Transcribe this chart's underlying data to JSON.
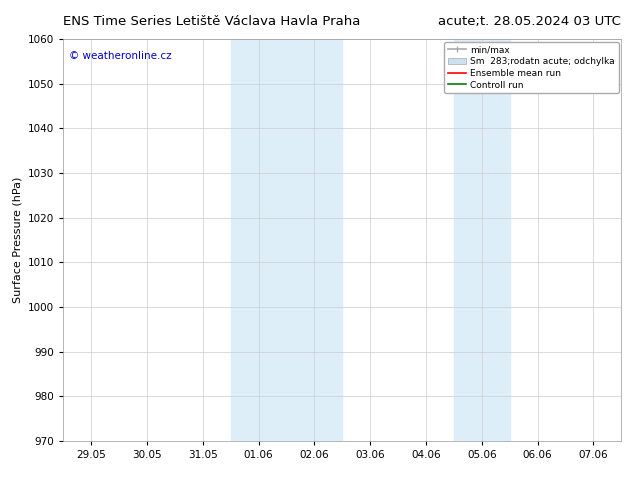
{
  "title_left": "ENS Time Series Letiště Václava Havla Praha",
  "title_right": "acute;t. 28.05.2024 03 UTC",
  "ylabel": "Surface Pressure (hPa)",
  "ylim": [
    970,
    1060
  ],
  "yticks": [
    970,
    980,
    990,
    1000,
    1010,
    1020,
    1030,
    1040,
    1050,
    1060
  ],
  "x_tick_labels": [
    "29.05",
    "30.05",
    "31.05",
    "01.06",
    "02.06",
    "03.06",
    "04.06",
    "05.06",
    "06.06",
    "07.06"
  ],
  "shaded_regions": [
    {
      "xmin": 3,
      "xmax": 5
    },
    {
      "xmin": 7,
      "xmax": 8
    }
  ],
  "shaded_color": "#ddeef8",
  "watermark_text": "© weatheronline.cz",
  "watermark_color": "#0000cc",
  "legend_entries": [
    {
      "label": "min/max",
      "color": "#aaaaaa",
      "lw": 1.2,
      "type": "line_with_cap"
    },
    {
      "label": "Sm  283;rodatn acute; odchylka",
      "color": "#cce0f0",
      "type": "rect"
    },
    {
      "label": "Ensemble mean run",
      "color": "red",
      "lw": 1.2,
      "type": "line"
    },
    {
      "label": "Controll run",
      "color": "green",
      "lw": 1.2,
      "type": "line"
    }
  ],
  "bg_color": "#ffffff",
  "grid_color": "#cccccc",
  "title_fontsize": 9.5,
  "tick_fontsize": 7.5,
  "ylabel_fontsize": 8
}
